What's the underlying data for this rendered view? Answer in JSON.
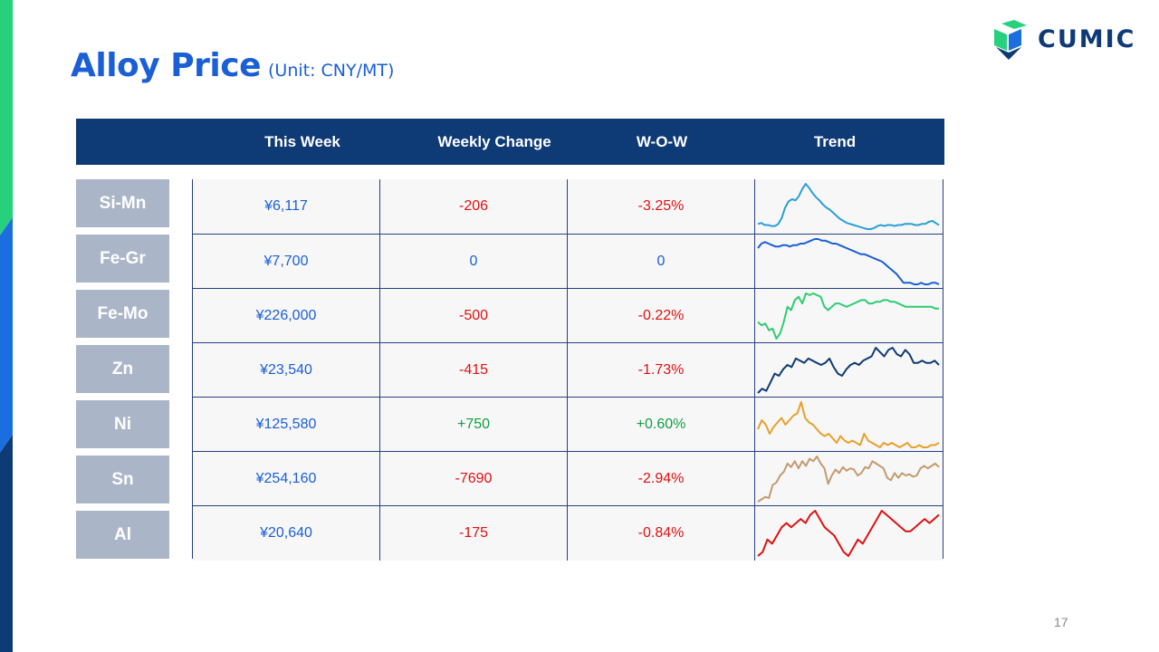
{
  "title": "Alloy Price",
  "unit": "(Unit: CNY/MT)",
  "logo": {
    "text": "CUMIC"
  },
  "header": {
    "this_week": "This Week",
    "weekly_change": "Weekly Change",
    "wow": "W-O-W",
    "trend": "Trend"
  },
  "rows": [
    {
      "name": "Si-Mn",
      "this_week": "¥6,117",
      "weekly_change": "-206",
      "wow": "-3.25%",
      "direction": "neg",
      "trend_color": "#2a9fd6",
      "trend": [
        56,
        57,
        55,
        55,
        54,
        54,
        56,
        62,
        72,
        78,
        80,
        79,
        83,
        90,
        95,
        91,
        86,
        82,
        79,
        75,
        72,
        70,
        67,
        64,
        61,
        59,
        57,
        56,
        55,
        54,
        53,
        52,
        51,
        51,
        52,
        54,
        55,
        54,
        55,
        55,
        54,
        55,
        55,
        56,
        56,
        56,
        55,
        55,
        56,
        56,
        58,
        59,
        57,
        55
      ]
    },
    {
      "name": "Fe-Gr",
      "this_week": "¥7,700",
      "weekly_change": "0",
      "wow": "0",
      "direction": "zero",
      "trend_color": "#1a5fd6",
      "trend": [
        94,
        97,
        98,
        97,
        96,
        95,
        95,
        96,
        96,
        95,
        96,
        96,
        97,
        97,
        98,
        99,
        100,
        100,
        99,
        99,
        98,
        97,
        97,
        96,
        95,
        94,
        93,
        92,
        91,
        90,
        90,
        89,
        88,
        87,
        86,
        85,
        83,
        81,
        79,
        77,
        74,
        71,
        71,
        71,
        70,
        70,
        71,
        70,
        70,
        71,
        71,
        70
      ]
    },
    {
      "name": "Fe-Mo",
      "this_week": "¥226,000",
      "weekly_change": "-500",
      "wow": "-0.22%",
      "direction": "neg",
      "trend_color": "#2ecc71",
      "trend": [
        205,
        203,
        204,
        200,
        201,
        195,
        198,
        205,
        214,
        212,
        218,
        220,
        216,
        222,
        221,
        222,
        221,
        220,
        214,
        212,
        214,
        216,
        216,
        215,
        214,
        215,
        216,
        217,
        218,
        218,
        216,
        216,
        217,
        217,
        218,
        218,
        217,
        217,
        216,
        215,
        214,
        214,
        214,
        214,
        214,
        214,
        214,
        214,
        213,
        213
      ]
    },
    {
      "name": "Zn",
      "this_week": "¥23,540",
      "weekly_change": "-415",
      "wow": "-1.73%",
      "direction": "neg",
      "trend_color": "#0e3a75",
      "trend": [
        22.8,
        23.0,
        22.9,
        23.3,
        23.7,
        23.6,
        23.9,
        24.1,
        24.0,
        24.4,
        24.3,
        24.2,
        24.4,
        24.3,
        24.2,
        24.1,
        24.2,
        24.4,
        24.0,
        23.7,
        23.6,
        23.9,
        24.1,
        24.2,
        24.1,
        24.3,
        24.4,
        24.5,
        24.9,
        24.7,
        24.5,
        24.8,
        24.9,
        24.6,
        24.5,
        24.8,
        24.6,
        24.2,
        24.2,
        24.3,
        24.2,
        24.2,
        24.3,
        24.1
      ]
    },
    {
      "name": "Ni",
      "this_week": "¥125,580",
      "weekly_change": "+750",
      "wow": "+0.60%",
      "direction": "pos",
      "trend_color": "#e8a02c",
      "trend": [
        128,
        132,
        130,
        126,
        129,
        131,
        133,
        130,
        132,
        134,
        135,
        140,
        133,
        131,
        130,
        128,
        126,
        125,
        126,
        124,
        122,
        125,
        123,
        122,
        123,
        122,
        121,
        126,
        123,
        122,
        121,
        120,
        122,
        121,
        122,
        121,
        120,
        121,
        122,
        120,
        120,
        121,
        120,
        120,
        121,
        121,
        122
      ]
    },
    {
      "name": "Sn",
      "this_week": "¥254,160",
      "weekly_change": "-7690",
      "wow": "-2.94%",
      "direction": "neg",
      "trend_color": "#c49a6c",
      "trend": [
        228,
        230,
        232,
        231,
        242,
        244,
        250,
        253,
        260,
        257,
        262,
        256,
        262,
        258,
        264,
        262,
        266,
        260,
        256,
        243,
        250,
        255,
        252,
        257,
        254,
        256,
        255,
        250,
        252,
        257,
        256,
        262,
        260,
        258,
        256,
        248,
        246,
        252,
        248,
        252,
        250,
        251,
        249,
        250,
        256,
        258,
        256,
        258,
        260,
        257
      ]
    },
    {
      "name": "Al",
      "this_week": "¥20,640",
      "weekly_change": "-175",
      "wow": "-0.84%",
      "direction": "neg",
      "trend_color": "#dd1111",
      "trend": [
        19.8,
        19.9,
        20.2,
        20.1,
        20.3,
        20.5,
        20.6,
        20.5,
        20.6,
        20.7,
        20.6,
        20.8,
        20.9,
        20.7,
        20.5,
        20.4,
        20.3,
        20.1,
        19.9,
        19.8,
        20.0,
        20.2,
        20.1,
        20.3,
        20.5,
        20.7,
        20.9,
        20.8,
        20.7,
        20.6,
        20.5,
        20.4,
        20.4,
        20.5,
        20.6,
        20.7,
        20.6,
        20.7,
        20.8
      ]
    }
  ],
  "page_number": "17",
  "colors": {
    "accent": "#1a5fd6",
    "header_bg": "#0e3a75",
    "label_bg": "#abb5c8",
    "negative": "#e01010",
    "positive": "#10a040"
  }
}
